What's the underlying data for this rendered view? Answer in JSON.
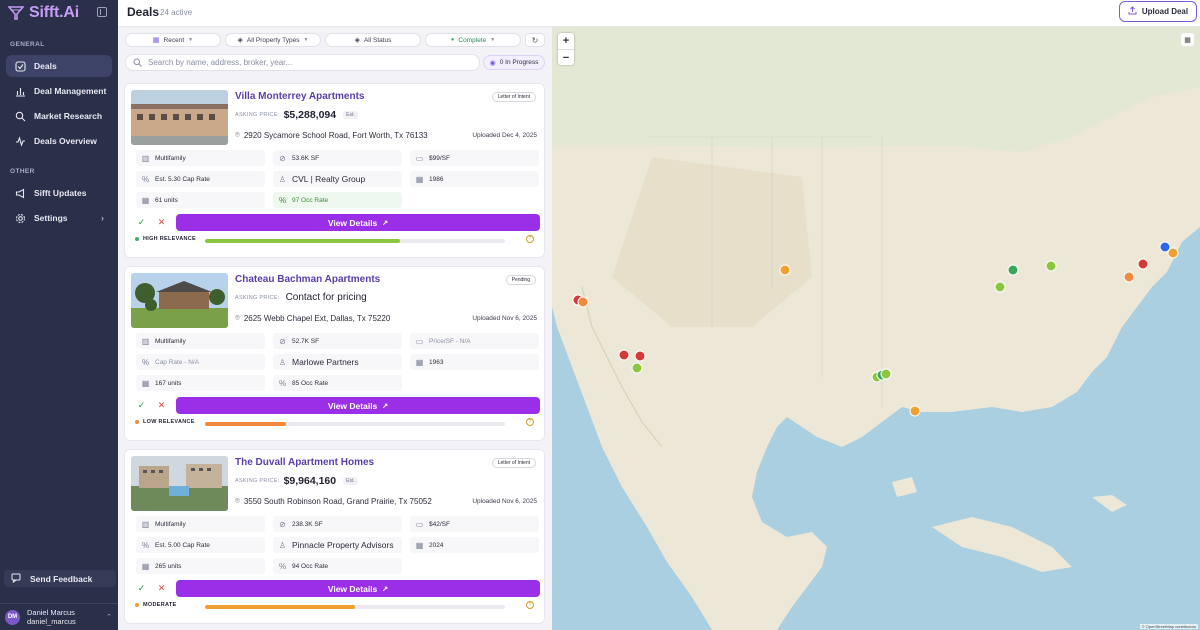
{
  "app": {
    "name": "Sifft.Ai"
  },
  "sidebar": {
    "general_label": "GENERAL",
    "other_label": "OTHER",
    "items": [
      {
        "label": "Deals",
        "icon": "checkbox-icon",
        "active": true
      },
      {
        "label": "Deal Management",
        "icon": "bar-chart-icon"
      },
      {
        "label": "Market Research",
        "icon": "search-icon"
      },
      {
        "label": "Deals Overview",
        "icon": "activity-icon"
      }
    ],
    "other_items": [
      {
        "label": "Sifft Updates",
        "icon": "megaphone-icon"
      },
      {
        "label": "Settings",
        "icon": "gear-icon"
      }
    ],
    "feedback_label": "Send Feedback",
    "user": {
      "initials": "DM",
      "name": "Daniel Marcus",
      "handle": "daniel_marcus"
    }
  },
  "header": {
    "title": "Deals",
    "count": "24 active",
    "upload_label": "Upload Deal"
  },
  "filters": {
    "sort": "Recent",
    "property_type": "All Property Types",
    "status": "All Status",
    "stage": "Complete",
    "search_placeholder": "Search by name, address, broker, year...",
    "in_progress": "0 In Progress"
  },
  "deals": [
    {
      "title": "Villa Monterrey Apartments",
      "stage": "Letter of Intent",
      "asking_label": "ASKING PRICE:",
      "price": "$5,288,094",
      "est": "Est.",
      "address": "2920 Sycamore School Road, Fort Worth, Tx 76133",
      "uploaded": "Uploaded Dec 4, 2025",
      "type": "Multifamily",
      "sf": "53.6K SF",
      "price_sf": "$99/SF",
      "cap_rate": "Est. 5.30 Cap Rate",
      "broker": "CVL | Realty Group",
      "year": "1986",
      "units": "61 units",
      "occ": "97 Occ Rate",
      "view_label": "View Details",
      "relevance": "HIGH RELEVANCE",
      "relevance_score": 0.65,
      "relevance_color": "#8cc63f"
    },
    {
      "title": "Chateau Bachman Apartments",
      "stage": "Pending",
      "asking_label": "ASKING PRICE:",
      "price": "Contact for pricing",
      "est": "",
      "address": "2625 Webb Chapel Ext, Dallas, Tx 75220",
      "uploaded": "Uploaded Nov 6, 2025",
      "type": "Multifamily",
      "sf": "52.7K SF",
      "price_sf": "Price/SF - N/A",
      "cap_rate": "Cap Rate - N/A",
      "broker": "Marlowe Partners",
      "year": "1963",
      "units": "167 units",
      "occ": "85 Occ Rate",
      "view_label": "View Details",
      "relevance": "LOW RELEVANCE",
      "relevance_score": 0.27,
      "relevance_color": "#f08a3c"
    },
    {
      "title": "The Duvall Apartment Homes",
      "stage": "Letter of Intent",
      "asking_label": "ASKING PRICE:",
      "price": "$9,964,160",
      "est": "Est.",
      "address": "3550 South Robinson Road, Grand Prairie, Tx 75052",
      "uploaded": "Uploaded Nov 6, 2025",
      "type": "Multifamily",
      "sf": "238.3K SF",
      "price_sf": "$42/SF",
      "cap_rate": "Est. 5.00 Cap Rate",
      "broker": "Pinnacle Property Advisors",
      "year": "2024",
      "units": "265 units",
      "occ": "94 Occ Rate",
      "view_label": "View Details",
      "relevance": "MODERATE",
      "relevance_score": 0.5,
      "relevance_color": "#f0a030"
    }
  ],
  "map": {
    "zoom_in": "+",
    "zoom_out": "−",
    "attribution": "© OpenStreetMap contributors"
  }
}
